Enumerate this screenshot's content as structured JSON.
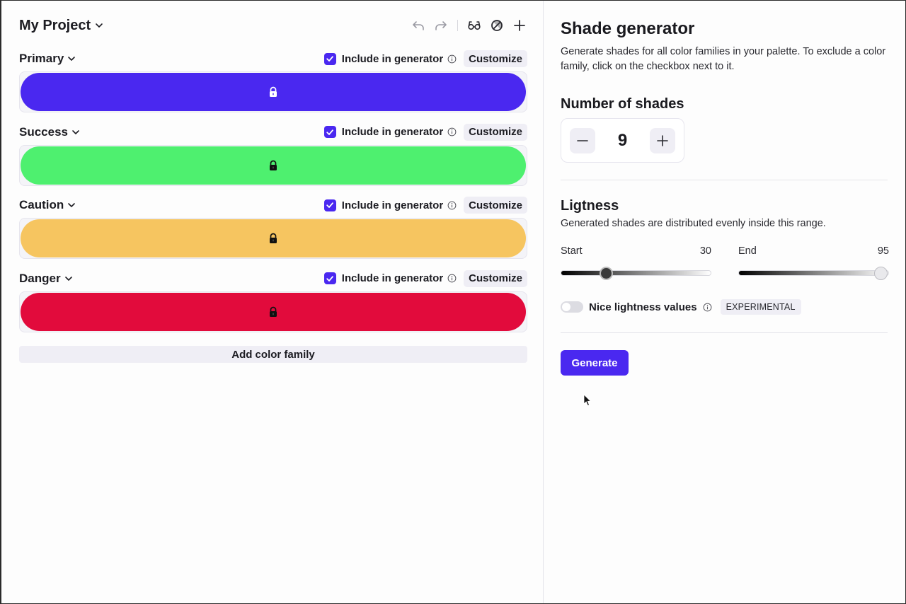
{
  "project": {
    "title": "My Project"
  },
  "toolbar": {
    "icons": [
      "undo-icon",
      "redo-icon",
      "glasses-icon",
      "no-entry-icon",
      "plus-icon"
    ]
  },
  "families": [
    {
      "name": "Primary",
      "color": "#4a28f0",
      "include": true,
      "include_label": "Include in generator",
      "customize_label": "Customize",
      "lock_color": "#ffffff"
    },
    {
      "name": "Success",
      "color": "#4ef06f",
      "include": true,
      "include_label": "Include in generator",
      "customize_label": "Customize",
      "lock_color": "#111111"
    },
    {
      "name": "Caution",
      "color": "#f6c560",
      "include": true,
      "include_label": "Include in generator",
      "customize_label": "Customize",
      "lock_color": "#111111"
    },
    {
      "name": "Danger",
      "color": "#e20b3c",
      "include": true,
      "include_label": "Include in generator",
      "customize_label": "Customize",
      "lock_color": "#111111"
    }
  ],
  "add_family_label": "Add color family",
  "generator": {
    "title": "Shade generator",
    "description": "Generate shades for all color families in your palette. To exclude a color family, click on the checkbox next to it.",
    "shades": {
      "title": "Number of shades",
      "value": "9"
    },
    "lightness": {
      "title": "Ligtness",
      "description": "Generated shades are distributed evenly inside this range.",
      "start_label": "Start",
      "start_value": "30",
      "end_label": "End",
      "end_value": "95"
    },
    "nice_values": {
      "label": "Nice lightness values",
      "enabled": false,
      "badge": "EXPERIMENTAL"
    },
    "generate_label": "Generate"
  },
  "colors": {
    "accent": "#4a28f0",
    "button_bg": "#efeef5"
  }
}
